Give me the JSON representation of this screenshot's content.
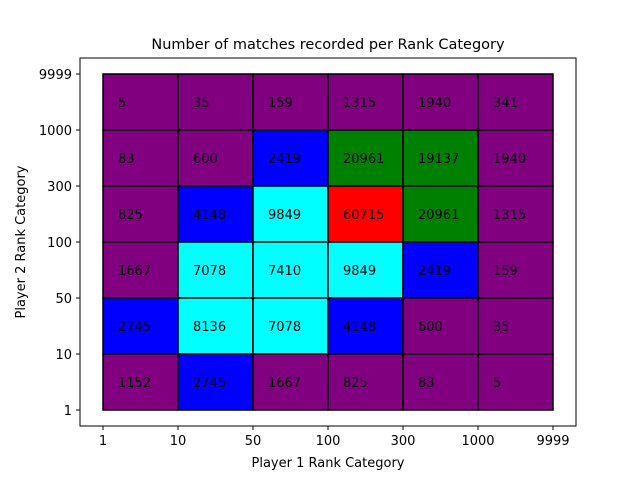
{
  "chart_data": {
    "type": "heatmap",
    "title": "Number of matches recorded per Rank Category",
    "xlabel": "Player 1 Rank Category",
    "ylabel": "Player 2 Rank Category",
    "x_ticks": [
      "1",
      "10",
      "50",
      "100",
      "300",
      "1000",
      "9999"
    ],
    "y_ticks": [
      "1",
      "10",
      "50",
      "100",
      "300",
      "1000",
      "9999"
    ],
    "rows_top_to_bottom": [
      [
        5,
        35,
        159,
        1315,
        1940,
        341
      ],
      [
        83,
        600,
        2419,
        20961,
        19137,
        1940
      ],
      [
        825,
        4148,
        9849,
        60715,
        20961,
        1315
      ],
      [
        1667,
        7078,
        7410,
        9849,
        2419,
        159
      ],
      [
        2745,
        8136,
        7078,
        4148,
        600,
        35
      ],
      [
        1152,
        2745,
        1667,
        825,
        83,
        5
      ]
    ],
    "colors": [
      "#800080",
      "#0000ff",
      "#00ffff",
      "#008000",
      "#ff0000"
    ],
    "color_thresholds": [
      1,
      2000,
      5000,
      10000,
      30000
    ],
    "grid": false,
    "legend": "none"
  }
}
